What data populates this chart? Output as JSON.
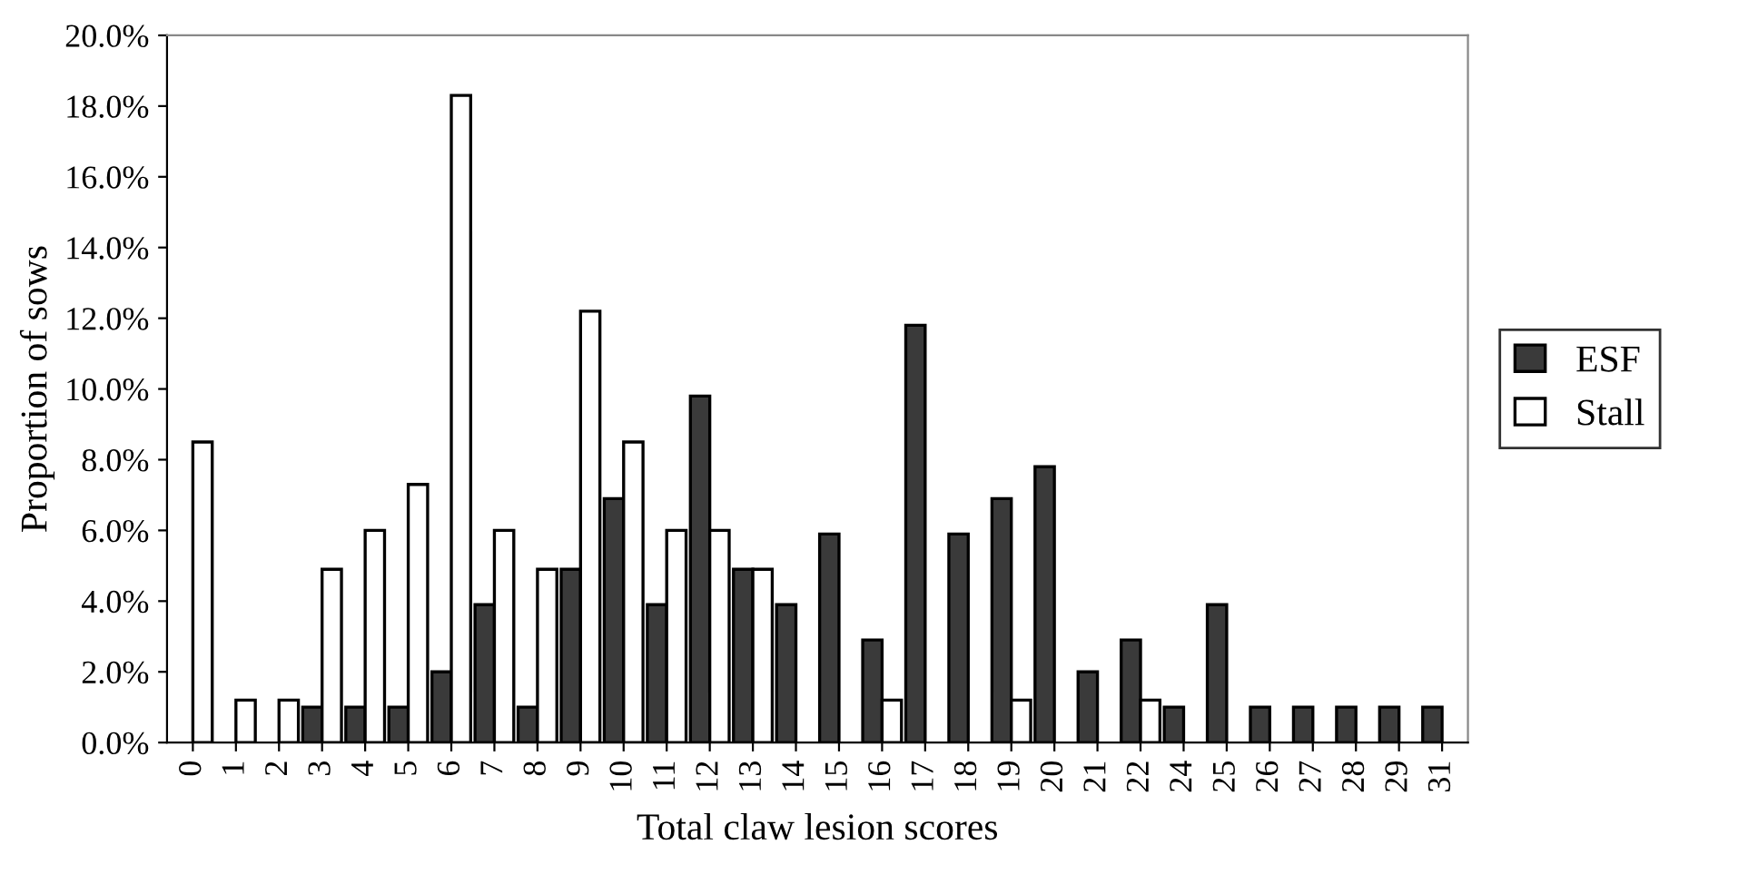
{
  "chart_data": {
    "type": "bar",
    "xlabel": "Total claw lesion scores",
    "ylabel": "Proportion of sows",
    "categories": [
      "0",
      "1",
      "2",
      "3",
      "4",
      "5",
      "6",
      "7",
      "8",
      "9",
      "10",
      "11",
      "12",
      "13",
      "14",
      "15",
      "16",
      "17",
      "18",
      "19",
      "20",
      "21",
      "22",
      "24",
      "25",
      "26",
      "27",
      "28",
      "29",
      "31"
    ],
    "series": [
      {
        "name": "ESF",
        "color": "#3a3a3a",
        "values": [
          null,
          null,
          null,
          1.0,
          1.0,
          1.0,
          2.0,
          3.9,
          1.0,
          4.9,
          6.9,
          3.9,
          9.8,
          4.9,
          3.9,
          5.9,
          2.9,
          11.8,
          5.9,
          6.9,
          7.8,
          2.0,
          2.9,
          1.0,
          3.9,
          1.0,
          1.0,
          1.0,
          1.0,
          1.0
        ]
      },
      {
        "name": "Stall",
        "color": "#ffffff",
        "values": [
          8.5,
          1.2,
          1.2,
          4.9,
          6.0,
          7.3,
          18.3,
          6.0,
          4.9,
          12.2,
          8.5,
          6.0,
          6.0,
          4.9,
          null,
          null,
          1.2,
          null,
          null,
          1.2,
          null,
          null,
          1.2,
          null,
          null,
          null,
          null,
          null,
          null,
          null
        ]
      }
    ],
    "ylim": [
      0,
      20
    ],
    "yticks": [
      {
        "value": 0,
        "label": "0.0%"
      },
      {
        "value": 2,
        "label": "2.0%"
      },
      {
        "value": 4,
        "label": "4.0%"
      },
      {
        "value": 6,
        "label": "6.0%"
      },
      {
        "value": 8,
        "label": "8.0%"
      },
      {
        "value": 10,
        "label": "10.0%"
      },
      {
        "value": 12,
        "label": "12.0%"
      },
      {
        "value": 14,
        "label": "14.0%"
      },
      {
        "value": 16,
        "label": "16.0%"
      },
      {
        "value": 18,
        "label": "18.0%"
      },
      {
        "value": 20,
        "label": "20.0%"
      }
    ],
    "legend": "right"
  }
}
